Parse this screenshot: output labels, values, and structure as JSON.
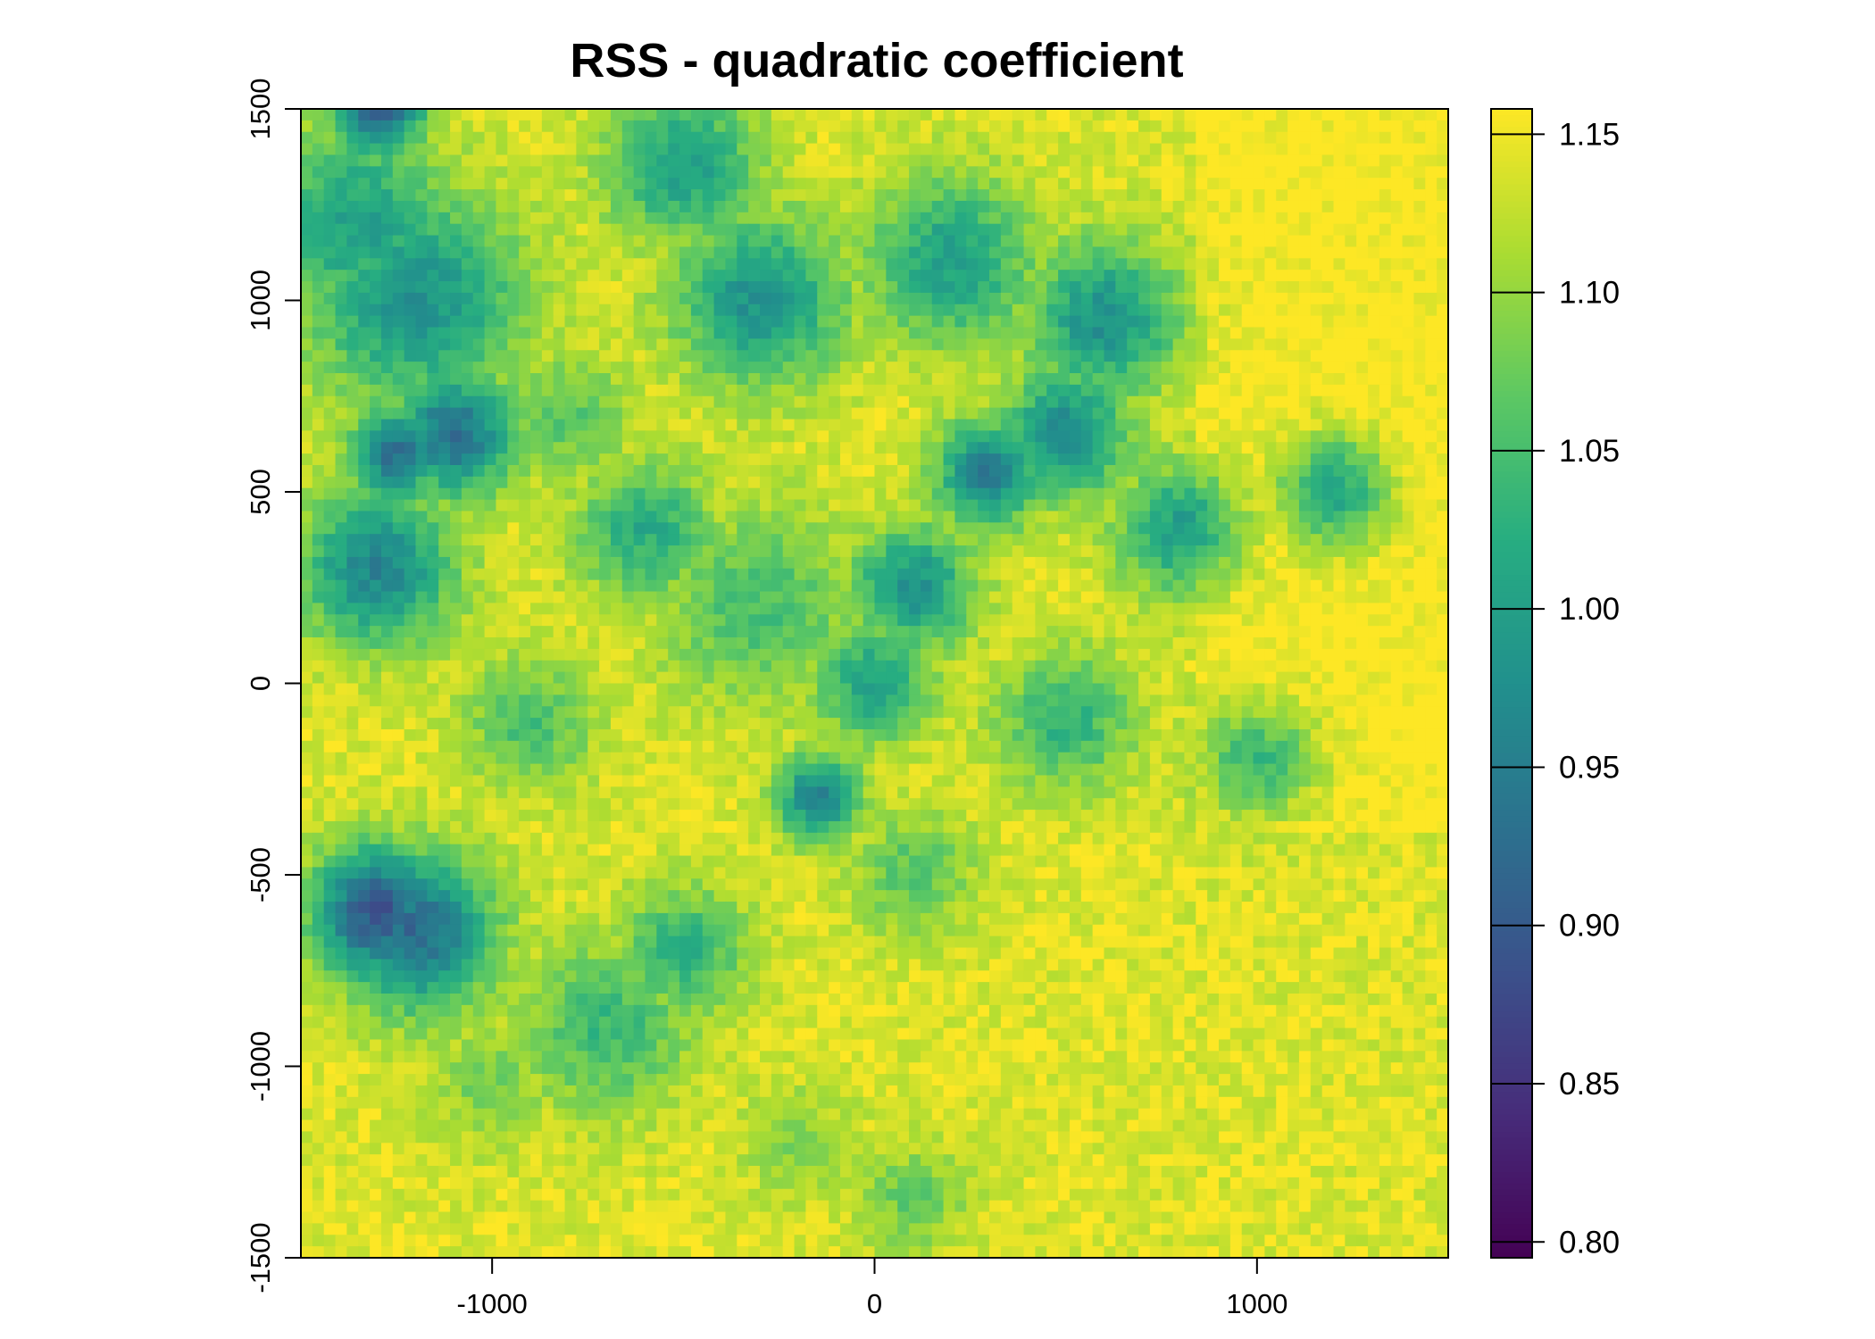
{
  "chart_data": {
    "type": "heatmap",
    "title": "RSS - quadratic coefficient",
    "xlabel": "",
    "ylabel": "",
    "xlim": [
      -1500,
      1500
    ],
    "ylim": [
      -1500,
      1500
    ],
    "x_ticks": [
      {
        "value": -1000,
        "label": "-1000"
      },
      {
        "value": 0,
        "label": "0"
      },
      {
        "value": 1000,
        "label": "1000"
      }
    ],
    "y_ticks": [
      {
        "value": -1500,
        "label": "-1500"
      },
      {
        "value": -1000,
        "label": "-1000"
      },
      {
        "value": -500,
        "label": "-500"
      },
      {
        "value": 0,
        "label": "0"
      },
      {
        "value": 500,
        "label": "500"
      },
      {
        "value": 1000,
        "label": "1000"
      },
      {
        "value": 1500,
        "label": "1500"
      }
    ],
    "colorbar": {
      "range": [
        0.795,
        1.158
      ],
      "colormap": "viridis",
      "ticks": [
        {
          "value": 0.8,
          "label": "0.80"
        },
        {
          "value": 0.85,
          "label": "0.85"
        },
        {
          "value": 0.9,
          "label": "0.90"
        },
        {
          "value": 0.95,
          "label": "0.95"
        },
        {
          "value": 1.0,
          "label": "1.00"
        },
        {
          "value": 1.05,
          "label": "1.05"
        },
        {
          "value": 1.1,
          "label": "1.10"
        },
        {
          "value": 1.15,
          "label": "1.15"
        }
      ]
    },
    "grid": false,
    "grid_resolution": [
      100,
      100
    ],
    "features": [
      {
        "x": -1300,
        "y": -600,
        "value": 0.89,
        "radius": 170
      },
      {
        "x": -1200,
        "y": -650,
        "value": 0.92,
        "radius": 200
      },
      {
        "x": -1250,
        "y": 600,
        "value": 0.93,
        "radius": 120
      },
      {
        "x": -1300,
        "y": 300,
        "value": 0.96,
        "radius": 200
      },
      {
        "x": -1100,
        "y": 650,
        "value": 0.93,
        "radius": 160
      },
      {
        "x": -1300,
        "y": 1500,
        "value": 0.9,
        "radius": 120
      },
      {
        "x": -1200,
        "y": 1000,
        "value": 0.98,
        "radius": 280
      },
      {
        "x": -1350,
        "y": 1200,
        "value": 1.0,
        "radius": 250
      },
      {
        "x": -300,
        "y": 1000,
        "value": 0.98,
        "radius": 220
      },
      {
        "x": -500,
        "y": 1350,
        "value": 1.0,
        "radius": 200
      },
      {
        "x": 200,
        "y": 1100,
        "value": 1.0,
        "radius": 220
      },
      {
        "x": 600,
        "y": 950,
        "value": 0.98,
        "radius": 200
      },
      {
        "x": 300,
        "y": 550,
        "value": 0.95,
        "radius": 140
      },
      {
        "x": 500,
        "y": 650,
        "value": 0.97,
        "radius": 170
      },
      {
        "x": 100,
        "y": 250,
        "value": 0.98,
        "radius": 160
      },
      {
        "x": 800,
        "y": 400,
        "value": 1.0,
        "radius": 170
      },
      {
        "x": 1200,
        "y": 500,
        "value": 1.01,
        "radius": 150
      },
      {
        "x": 0,
        "y": 0,
        "value": 1.0,
        "radius": 150
      },
      {
        "x": -150,
        "y": -300,
        "value": 0.96,
        "radius": 110
      },
      {
        "x": -700,
        "y": -900,
        "value": 1.04,
        "radius": 220
      },
      {
        "x": -500,
        "y": -700,
        "value": 1.03,
        "radius": 170
      },
      {
        "x": -600,
        "y": 400,
        "value": 1.02,
        "radius": 180
      },
      {
        "x": -300,
        "y": 200,
        "value": 1.05,
        "radius": 260
      },
      {
        "x": 500,
        "y": -100,
        "value": 1.03,
        "radius": 180
      },
      {
        "x": 1000,
        "y": -200,
        "value": 1.04,
        "radius": 160
      },
      {
        "x": -900,
        "y": -100,
        "value": 1.05,
        "radius": 170
      },
      {
        "x": 100,
        "y": -500,
        "value": 1.06,
        "radius": 160
      },
      {
        "x": -1000,
        "y": -1050,
        "value": 1.08,
        "radius": 160
      },
      {
        "x": -800,
        "y": 700,
        "value": 1.06,
        "radius": 160
      },
      {
        "x": 100,
        "y": -1350,
        "value": 1.07,
        "radius": 140
      },
      {
        "x": -200,
        "y": -1200,
        "value": 1.09,
        "radius": 150
      }
    ]
  }
}
